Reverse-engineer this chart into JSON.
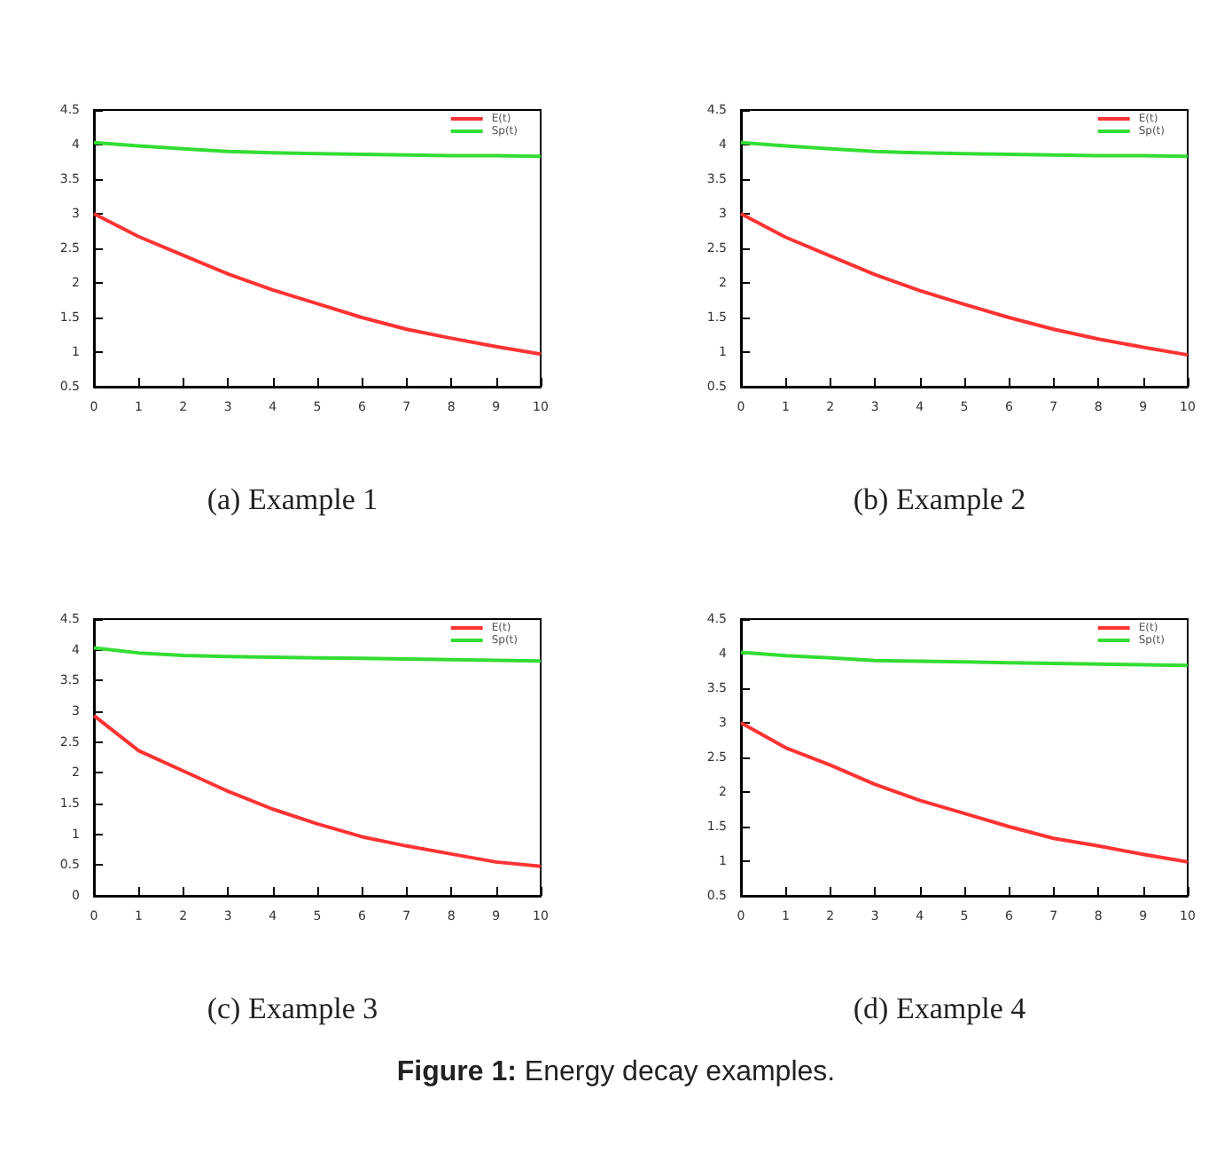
{
  "chart_data": [
    {
      "type": "line",
      "title": "(a) Example 1",
      "annotations": [
        "Figure 1: Energy decay examples."
      ],
      "legend": "top right",
      "marker": "none",
      "xlim": [
        0,
        10
      ],
      "ylim": [
        0.5,
        4.5
      ],
      "xticks": [
        0,
        1,
        2,
        3,
        4,
        5,
        6,
        7,
        8,
        9,
        10
      ],
      "yticks": [
        0.5,
        1,
        1.5,
        2,
        2.5,
        3,
        3.5,
        4,
        4.5
      ],
      "x": [
        0,
        1,
        2,
        3,
        4,
        5,
        6,
        7,
        8,
        9,
        10
      ],
      "series": [
        {
          "name": "E(t)",
          "color": "#ff3333",
          "values": [
            3.0,
            2.67,
            2.4,
            2.13,
            1.9,
            1.7,
            1.5,
            1.33,
            1.2,
            1.08,
            0.97
          ]
        },
        {
          "name": "Sp(t)",
          "color": "#33dd33",
          "values": [
            4.03,
            3.98,
            3.94,
            3.9,
            3.88,
            3.87,
            3.86,
            3.85,
            3.84,
            3.84,
            3.83
          ]
        }
      ]
    },
    {
      "type": "line",
      "title": "(b) Example 2",
      "legend": "top right",
      "marker": "none",
      "xlim": [
        0,
        10
      ],
      "ylim": [
        0.5,
        4.5
      ],
      "xticks": [
        0,
        1,
        2,
        3,
        4,
        5,
        6,
        7,
        8,
        9,
        10
      ],
      "yticks": [
        0.5,
        1,
        1.5,
        2,
        2.5,
        3,
        3.5,
        4,
        4.5
      ],
      "x": [
        0,
        1,
        2,
        3,
        4,
        5,
        6,
        7,
        8,
        9,
        10
      ],
      "series": [
        {
          "name": "E(t)",
          "color": "#ff3333",
          "values": [
            3.0,
            2.66,
            2.39,
            2.12,
            1.89,
            1.69,
            1.5,
            1.33,
            1.19,
            1.07,
            0.96
          ]
        },
        {
          "name": "Sp(t)",
          "color": "#33dd33",
          "values": [
            4.03,
            3.98,
            3.94,
            3.9,
            3.88,
            3.87,
            3.86,
            3.85,
            3.84,
            3.84,
            3.83
          ]
        }
      ]
    },
    {
      "type": "line",
      "title": "(c) Example 3",
      "legend": "top right",
      "marker": "none",
      "xlim": [
        0,
        10
      ],
      "ylim": [
        0,
        4.5
      ],
      "xticks": [
        0,
        1,
        2,
        3,
        4,
        5,
        6,
        7,
        8,
        9,
        10
      ],
      "yticks": [
        0,
        0.5,
        1,
        1.5,
        2,
        2.5,
        3,
        3.5,
        4,
        4.5
      ],
      "x": [
        0,
        1,
        2,
        3,
        4,
        5,
        6,
        7,
        8,
        9,
        10
      ],
      "series": [
        {
          "name": "E(t)",
          "color": "#ff3333",
          "values": [
            2.93,
            2.36,
            2.03,
            1.7,
            1.41,
            1.17,
            0.96,
            0.81,
            0.68,
            0.55,
            0.48
          ]
        },
        {
          "name": "Sp(t)",
          "color": "#33dd33",
          "values": [
            4.03,
            3.95,
            3.91,
            3.89,
            3.88,
            3.87,
            3.86,
            3.85,
            3.84,
            3.83,
            3.82
          ]
        }
      ]
    },
    {
      "type": "line",
      "title": "(d) Example 4",
      "legend": "top right",
      "marker": "none",
      "xlim": [
        0,
        10
      ],
      "ylim": [
        0.5,
        4.5
      ],
      "xticks": [
        0,
        1,
        2,
        3,
        4,
        5,
        6,
        7,
        8,
        9,
        10
      ],
      "yticks": [
        0.5,
        1,
        1.5,
        2,
        2.5,
        3,
        3.5,
        4,
        4.5
      ],
      "x": [
        0,
        1,
        2,
        3,
        4,
        5,
        6,
        7,
        8,
        9,
        10
      ],
      "series": [
        {
          "name": "E(t)",
          "color": "#ff3333",
          "values": [
            3.0,
            2.64,
            2.39,
            2.11,
            1.88,
            1.69,
            1.5,
            1.33,
            1.22,
            1.1,
            0.99
          ]
        },
        {
          "name": "Sp(t)",
          "color": "#33dd33",
          "values": [
            4.02,
            3.97,
            3.94,
            3.9,
            3.89,
            3.88,
            3.87,
            3.86,
            3.85,
            3.84,
            3.83
          ]
        }
      ]
    }
  ]
}
